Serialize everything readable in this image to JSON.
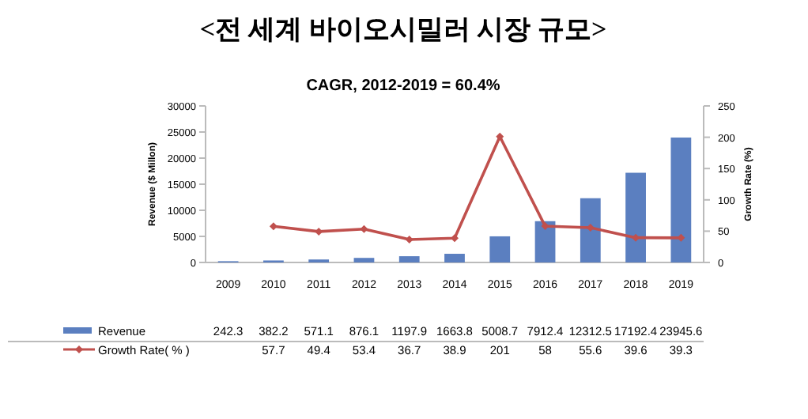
{
  "chart_data": {
    "type": "bar",
    "title": "<전 세계 바이오시밀러 시장 규모>",
    "subtitle": "CAGR, 2012-2019 = 60.4%",
    "ylabel": "Revenue ($ Millon)",
    "y2label": "Growth Rate (%)",
    "categories": [
      "2009",
      "2010",
      "2011",
      "2012",
      "2013",
      "2014",
      "2015",
      "2016",
      "2017",
      "2018",
      "2019"
    ],
    "series": [
      {
        "name": "Revenue",
        "color": "#5b7fc0",
        "values": [
          242.3,
          382.2,
          571.1,
          876.1,
          1197.9,
          1663.8,
          5008.7,
          7912.4,
          12312.5,
          17192.4,
          23945.6
        ]
      },
      {
        "name": "Growth Rate( % )",
        "type": "line",
        "axis": "y2",
        "color": "#c0504d",
        "values": [
          null,
          57.7,
          49.4,
          53.4,
          36.7,
          38.9,
          201,
          58,
          55.6,
          39.6,
          39.3
        ]
      }
    ],
    "ylim": [
      0,
      30000
    ],
    "yticks": [
      0,
      5000,
      10000,
      15000,
      20000,
      25000,
      30000
    ],
    "y2lim": [
      0,
      250
    ],
    "y2ticks": [
      0,
      50,
      100,
      150,
      200,
      250
    ],
    "data_labels": true,
    "legend": "bottom",
    "marker": "diamond",
    "line_style": "solid",
    "grid": false
  }
}
